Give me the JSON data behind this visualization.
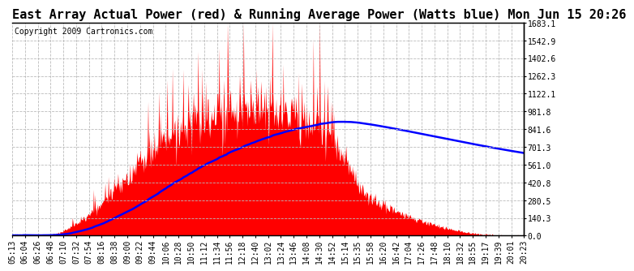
{
  "title": "East Array Actual Power (red) & Running Average Power (Watts blue) Mon Jun 15 20:26",
  "copyright": "Copyright 2009 Cartronics.com",
  "ylabel_right_ticks": [
    0.0,
    140.3,
    280.5,
    420.8,
    561.0,
    701.3,
    841.6,
    981.8,
    1122.1,
    1262.3,
    1402.6,
    1542.9,
    1683.1
  ],
  "ymax": 1683.1,
  "ymin": 0.0,
  "x_labels": [
    "05:13",
    "06:04",
    "06:26",
    "06:48",
    "07:10",
    "07:32",
    "07:54",
    "08:16",
    "08:38",
    "09:00",
    "09:22",
    "09:44",
    "10:06",
    "10:28",
    "10:50",
    "11:12",
    "11:34",
    "11:56",
    "12:18",
    "12:40",
    "13:02",
    "13:24",
    "13:46",
    "14:08",
    "14:30",
    "14:52",
    "15:14",
    "15:35",
    "15:58",
    "16:20",
    "16:42",
    "17:04",
    "17:26",
    "17:48",
    "18:10",
    "18:32",
    "18:55",
    "19:17",
    "19:39",
    "20:01",
    "20:23"
  ],
  "bg_color": "#ffffff",
  "plot_bg_color": "#ffffff",
  "grid_color": "#bbbbbb",
  "red_color": "#ff0000",
  "blue_color": "#0000ff",
  "title_fontsize": 11,
  "tick_fontsize": 7,
  "copyright_fontsize": 7
}
